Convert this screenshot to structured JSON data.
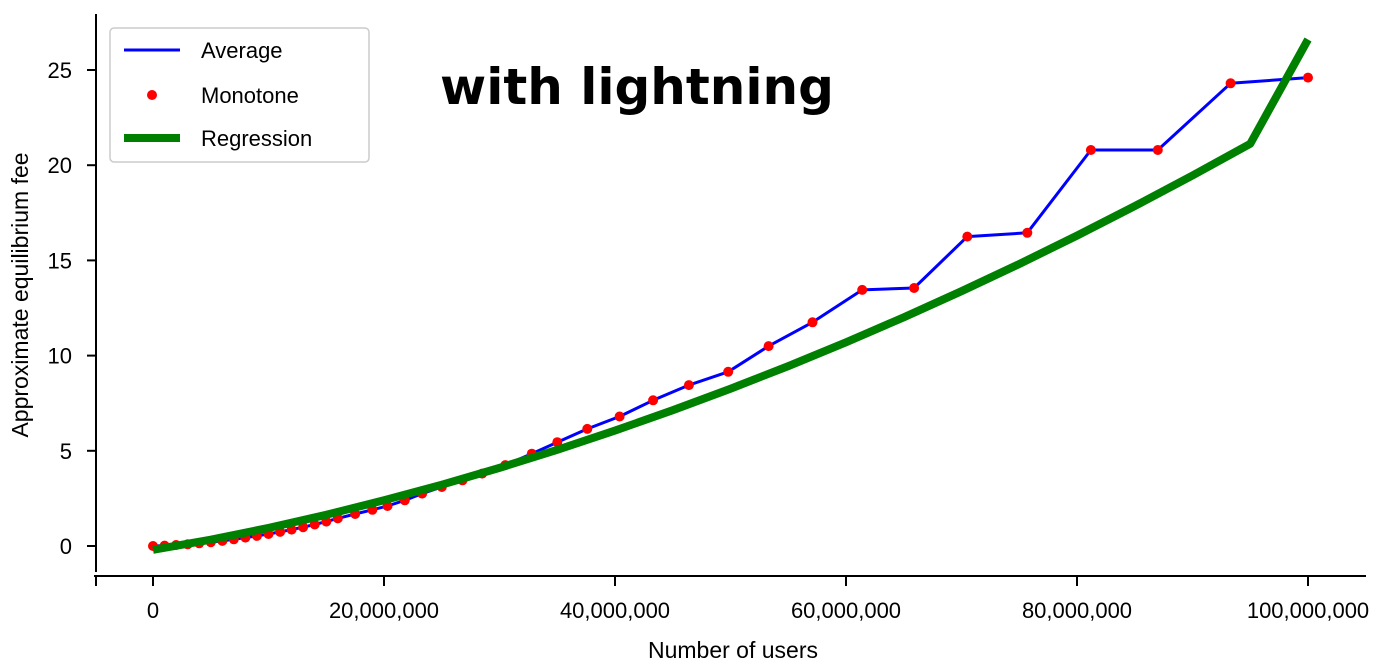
{
  "chart_data": {
    "type": "line",
    "title": "",
    "annotation": "with lightning",
    "xlabel": "Number of users",
    "ylabel": "Approximate equilibrium fee",
    "xlim": [
      -2500000,
      105000000
    ],
    "ylim": [
      -1.5,
      28
    ],
    "xticks": [
      0,
      20000000,
      40000000,
      60000000,
      80000000,
      100000000
    ],
    "xtick_labels": [
      "0",
      "20,000,000",
      "40,000,000",
      "60,000,000",
      "80,000,000",
      "100,000,000"
    ],
    "yticks": [
      0,
      5,
      10,
      15,
      20,
      25
    ],
    "ytick_labels": [
      "0",
      "5",
      "10",
      "15",
      "20",
      "25"
    ],
    "legend": {
      "position": "top-left",
      "entries": [
        "Average",
        "Monotone",
        "Regression"
      ]
    },
    "colors": {
      "average": "#0000ff",
      "monotone": "#ff0000",
      "regression": "#008000"
    },
    "grid": false,
    "series": [
      {
        "name": "Average",
        "style": "line",
        "x": [
          0,
          1000000,
          2000000,
          3000000,
          4000000,
          5000000,
          6000000,
          7000000,
          8000000,
          9000000,
          10000000,
          11000000,
          12000000,
          13000000,
          14000000,
          15000000,
          16000000,
          17500000,
          19000000,
          20300000,
          21800000,
          23300000,
          25000000,
          26800000,
          28500000,
          30500000,
          32800000,
          35000000,
          37600000,
          40400000,
          43300000,
          46400000,
          49800000,
          53300000,
          57100000,
          61400000,
          65900000,
          70500000,
          75700000,
          81200000,
          87000000,
          93300000,
          100000000
        ],
        "y": [
          0,
          0.02,
          0.05,
          0.09,
          0.14,
          0.2,
          0.27,
          0.35,
          0.44,
          0.53,
          0.63,
          0.74,
          0.86,
          0.99,
          1.13,
          1.28,
          1.45,
          1.68,
          1.9,
          2.1,
          2.4,
          2.75,
          3.1,
          3.45,
          3.8,
          4.25,
          4.85,
          5.45,
          6.15,
          6.8,
          7.65,
          8.45,
          9.15,
          10.5,
          11.75,
          13.45,
          13.55,
          16.25,
          16.45,
          20.8,
          20.8,
          24.3,
          24.6
        ]
      },
      {
        "name": "Monotone",
        "style": "dots",
        "x": [
          0,
          1000000,
          2000000,
          3000000,
          4000000,
          5000000,
          6000000,
          7000000,
          8000000,
          9000000,
          10000000,
          11000000,
          12000000,
          13000000,
          14000000,
          15000000,
          16000000,
          17500000,
          19000000,
          20300000,
          21800000,
          23300000,
          25000000,
          26800000,
          28500000,
          30500000,
          32800000,
          35000000,
          37600000,
          40400000,
          43300000,
          46400000,
          49800000,
          53300000,
          57100000,
          61400000,
          65900000,
          70500000,
          75700000,
          81200000,
          87000000,
          93300000,
          100000000
        ],
        "y": [
          0,
          0.02,
          0.05,
          0.09,
          0.14,
          0.2,
          0.27,
          0.35,
          0.44,
          0.53,
          0.63,
          0.74,
          0.86,
          0.99,
          1.13,
          1.28,
          1.45,
          1.68,
          1.9,
          2.1,
          2.4,
          2.75,
          3.1,
          3.45,
          3.8,
          4.25,
          4.85,
          5.45,
          6.15,
          6.8,
          7.65,
          8.45,
          9.15,
          10.5,
          11.75,
          13.45,
          13.55,
          16.25,
          16.45,
          20.8,
          20.8,
          24.3,
          24.6
        ]
      },
      {
        "name": "Regression",
        "style": "thick-line",
        "x": [
          0,
          5000000,
          10000000,
          15000000,
          20000000,
          25000000,
          30000000,
          35000000,
          40000000,
          45000000,
          50000000,
          55000000,
          60000000,
          65000000,
          70000000,
          75000000,
          80000000,
          85000000,
          90000000,
          95000000,
          100000000
        ],
        "y": [
          -0.2,
          0.33,
          0.95,
          1.64,
          2.4,
          3.22,
          4.1,
          5.05,
          6.06,
          7.13,
          8.26,
          9.45,
          10.7,
          12.01,
          13.38,
          14.81,
          16.3,
          17.85,
          19.46,
          21.13,
          26.6
        ]
      }
    ]
  }
}
